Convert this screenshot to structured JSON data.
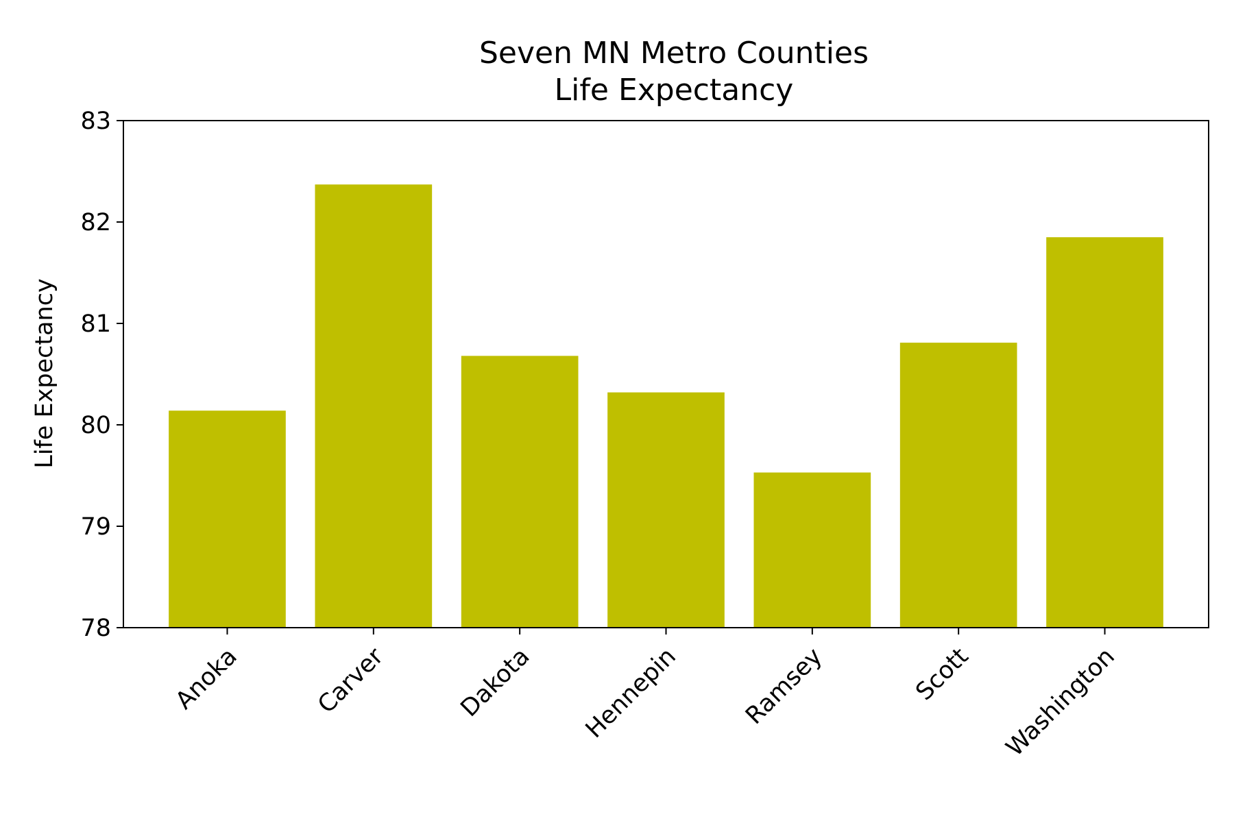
{
  "chart_data": {
    "type": "bar",
    "title": "Seven MN Metro Counties",
    "subtitle": "Life Expectancy",
    "xlabel": "",
    "ylabel": "Life Expectancy",
    "categories": [
      "Anoka",
      "Carver",
      "Dakota",
      "Hennepin",
      "Ramsey",
      "Scott",
      "Washington"
    ],
    "values": [
      80.14,
      82.37,
      80.68,
      80.32,
      79.53,
      80.81,
      81.85
    ],
    "ylim": [
      78,
      83
    ],
    "yticks": [
      "78",
      "79",
      "80",
      "81",
      "82",
      "83"
    ],
    "bar_color": "#bfbf00",
    "grid": false,
    "legend": "none"
  }
}
